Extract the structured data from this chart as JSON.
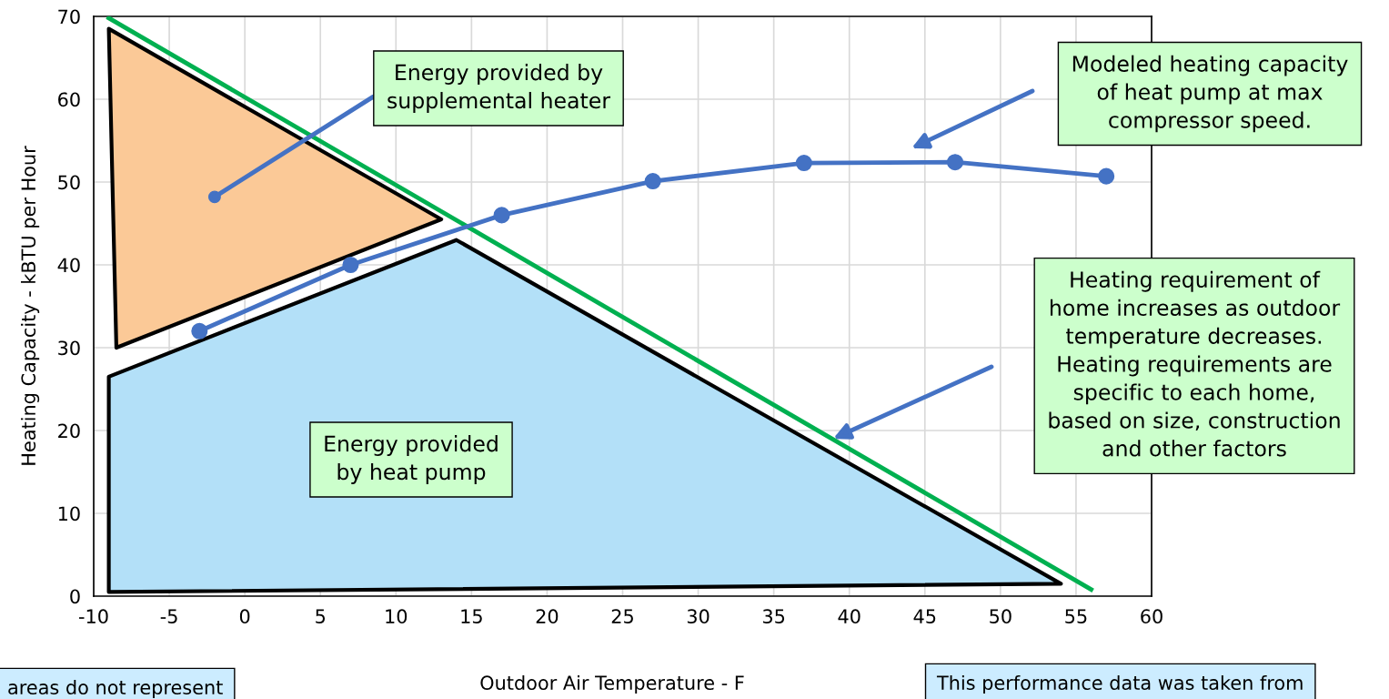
{
  "chart_data": {
    "type": "line",
    "xlabel": "Outdoor Air Temperature - F",
    "ylabel": "Heating Capacity - kBTU per Hour",
    "xlim": [
      -10,
      60
    ],
    "xticks": [
      -10,
      -5,
      0,
      5,
      10,
      15,
      20,
      25,
      30,
      35,
      40,
      45,
      50,
      55,
      60
    ],
    "ylim": [
      0,
      70
    ],
    "yticks": [
      0,
      10,
      20,
      30,
      40,
      50,
      60,
      70
    ],
    "grid": true,
    "series": [
      {
        "type": "area",
        "color": "#fbc997",
        "x": [
          -9,
          13,
          -8.5
        ],
        "values": [
          68.5,
          45.5,
          30
        ]
      },
      {
        "type": "area",
        "color": "#b3e0f8",
        "x": [
          -9,
          14,
          54,
          -9
        ],
        "values": [
          26.5,
          43,
          1.5,
          0.5
        ]
      },
      {
        "color": "#00b050",
        "x": [
          -9,
          56
        ],
        "values": [
          69.8,
          0.8
        ],
        "marker": "none"
      },
      {
        "color": "#4472c4",
        "x": [
          -3,
          7,
          17,
          27,
          37,
          47,
          57
        ],
        "values": [
          32,
          40,
          46,
          50.1,
          52.3,
          52.4,
          50.7
        ],
        "marker": "circle"
      }
    ],
    "annotations": [
      {
        "text": "Energy provided by\nsupplemental heater",
        "x": -2,
        "y": 48.2
      },
      "Modeled heating capacity\nof heat pump at max\ncompressor speed.",
      "Heating requirement of\nhome increases as outdoor\ntemperature decreases.\nHeating requirements are\nspecific to each home,\nbased on size, construction\nand other factors",
      "Energy provided\nby heat pump",
      "areas do not represent",
      "This performance data was taken from"
    ]
  }
}
